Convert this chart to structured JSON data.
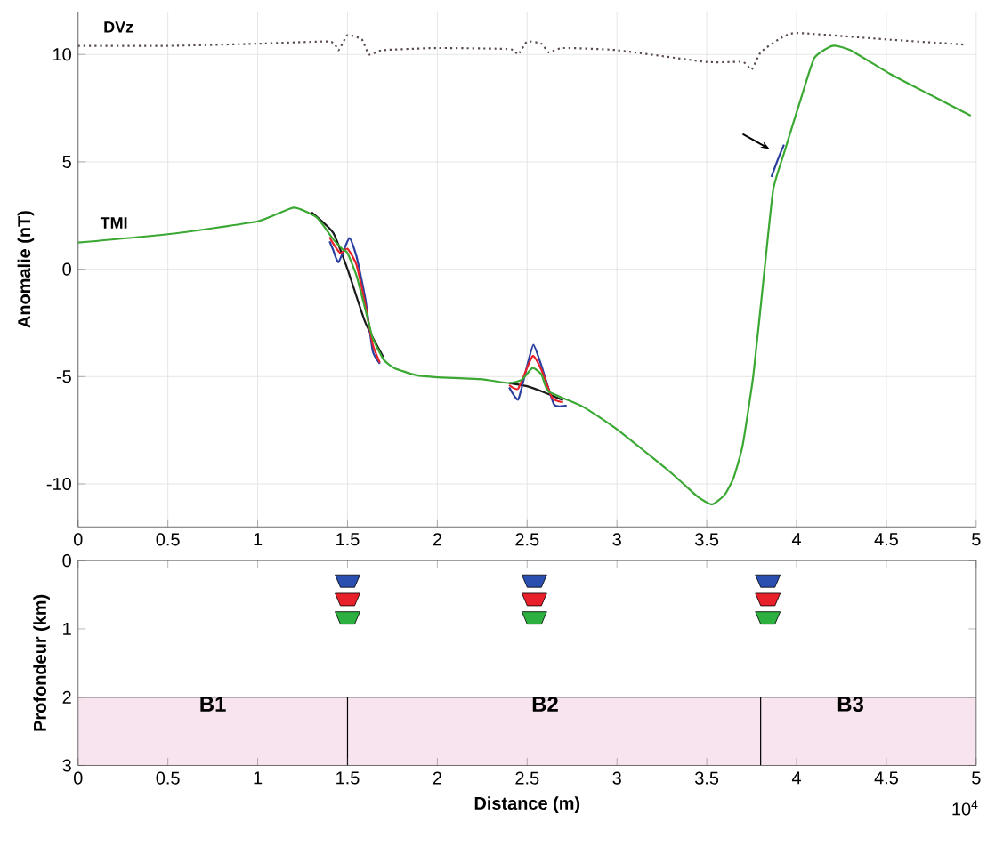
{
  "chart_data": [
    {
      "type": "line",
      "ylabel": "Anomalie (nT)",
      "xlim": [
        0,
        5
      ],
      "ylim": [
        -12,
        12
      ],
      "xticks": [
        0,
        0.5,
        1,
        1.5,
        2,
        2.5,
        3,
        3.5,
        4,
        4.5,
        5
      ],
      "yticks": [
        -10,
        -5,
        0,
        5,
        10
      ],
      "grid": true,
      "annotations": [
        "TMI",
        "DVz"
      ],
      "series": [
        {
          "color": "#5a4a4a",
          "line_style": "dotted",
          "x": [
            0,
            0.5,
            1,
            1.4,
            1.45,
            1.5,
            1.58,
            1.62,
            1.7,
            2,
            2.4,
            2.45,
            2.5,
            2.58,
            2.62,
            2.7,
            3,
            3.5,
            3.7,
            3.75,
            3.8,
            3.9,
            4,
            4.5,
            4.95
          ],
          "values": [
            10.4,
            10.4,
            10.5,
            10.6,
            10.2,
            10.9,
            10.7,
            10.0,
            10.2,
            10.3,
            10.25,
            10.0,
            10.6,
            10.5,
            10.1,
            10.3,
            10.2,
            9.65,
            9.65,
            9.3,
            10.1,
            10.7,
            11.0,
            10.7,
            10.45
          ]
        },
        {
          "color": "#1a1a1a",
          "x": [
            1.3,
            1.42,
            1.5,
            1.6,
            1.7,
            2.0,
            2.4,
            2.5,
            2.6,
            2.7
          ],
          "values": [
            2.65,
            1.7,
            0.0,
            -2.5,
            -4.1,
            null,
            -5.3,
            -5.45,
            -5.75,
            -6.1
          ]
        },
        {
          "color": "#2a3fa0",
          "x": [
            1.4,
            1.42,
            1.45,
            1.51,
            1.55,
            1.6,
            1.64,
            1.68,
            2.0,
            2.4,
            2.45,
            2.5,
            2.535,
            2.58,
            2.65,
            2.72,
            3.0,
            3.86,
            3.9,
            3.93
          ],
          "values": [
            1.3,
            0.9,
            0.33,
            1.45,
            0.6,
            -1.4,
            -3.8,
            -4.4,
            null,
            -5.5,
            -6.07,
            -4.5,
            -3.52,
            -4.5,
            -6.3,
            -6.35,
            null,
            4.3,
            5.2,
            5.8
          ]
        },
        {
          "color": "#e8202a",
          "x": [
            1.4,
            1.42,
            1.46,
            1.5,
            1.55,
            1.6,
            1.64,
            1.68,
            2.0,
            2.4,
            2.45,
            2.53,
            2.58,
            2.64,
            2.7
          ],
          "values": [
            1.5,
            1.2,
            0.75,
            0.95,
            0.2,
            -1.7,
            -3.5,
            -4.35,
            null,
            -5.4,
            -5.56,
            -4.05,
            -4.7,
            -6.0,
            -6.2
          ]
        },
        {
          "color": "#3aa832",
          "x": [
            0,
            0.5,
            1,
            1.2,
            1.33,
            1.42,
            1.47,
            1.5,
            1.55,
            1.6,
            1.64,
            1.7,
            1.76,
            1.88,
            2,
            2.24,
            2.4,
            2.47,
            2.53,
            2.58,
            2.62,
            2.81,
            3,
            3.29,
            3.45,
            3.53,
            3.6,
            3.65,
            3.7,
            3.76,
            3.82,
            3.87,
            3.93,
            4.03,
            4.1,
            4.2,
            4.3,
            4.52,
            4.75,
            4.97
          ],
          "values": [
            1.24,
            1.63,
            2.23,
            2.87,
            2.4,
            1.4,
            0.95,
            0.75,
            -0.3,
            -1.9,
            -3.2,
            -4.2,
            -4.6,
            -4.93,
            -5.03,
            -5.12,
            -5.3,
            -5.15,
            -4.6,
            -4.9,
            -5.7,
            -6.4,
            -7.46,
            -9.4,
            -10.6,
            -10.95,
            -10.5,
            -9.7,
            -8.2,
            -4.9,
            -0.15,
            3.7,
            5.4,
            8.1,
            9.85,
            10.4,
            10.2,
            9.1,
            8.1,
            7.15
          ]
        }
      ]
    },
    {
      "type": "scatter",
      "xlabel": "Distance (m)",
      "ylabel": "Profondeur (km)",
      "xlim": [
        0,
        5
      ],
      "ylim": [
        3,
        0
      ],
      "xticks": [
        0,
        0.5,
        1,
        1.5,
        2,
        2.5,
        3,
        3.5,
        4,
        4.5,
        5
      ],
      "yticks": [
        0,
        1,
        2,
        3
      ],
      "bands": [
        {
          "axis": "y",
          "from": 2,
          "to": 3,
          "color": "#f7e4ef"
        }
      ],
      "ref_lines": [
        {
          "axis": "y",
          "value": 2
        },
        {
          "axis": "x",
          "value": 1.5
        },
        {
          "axis": "x",
          "value": 3.8
        }
      ],
      "annotations": [
        "B1",
        "B2",
        "B3",
        "10$^{4}$"
      ],
      "series": [
        {
          "color": "#2a4fb0",
          "x": [
            1.5,
            2.54,
            3.84
          ],
          "values": [
            0.3,
            0.3,
            0.3
          ]
        },
        {
          "color": "#e8202a",
          "x": [
            1.5,
            2.54,
            3.84
          ],
          "values": [
            0.57,
            0.57,
            0.57
          ]
        },
        {
          "color": "#2db040",
          "x": [
            1.5,
            2.54,
            3.84
          ],
          "values": [
            0.84,
            0.84,
            0.84
          ]
        }
      ]
    }
  ]
}
